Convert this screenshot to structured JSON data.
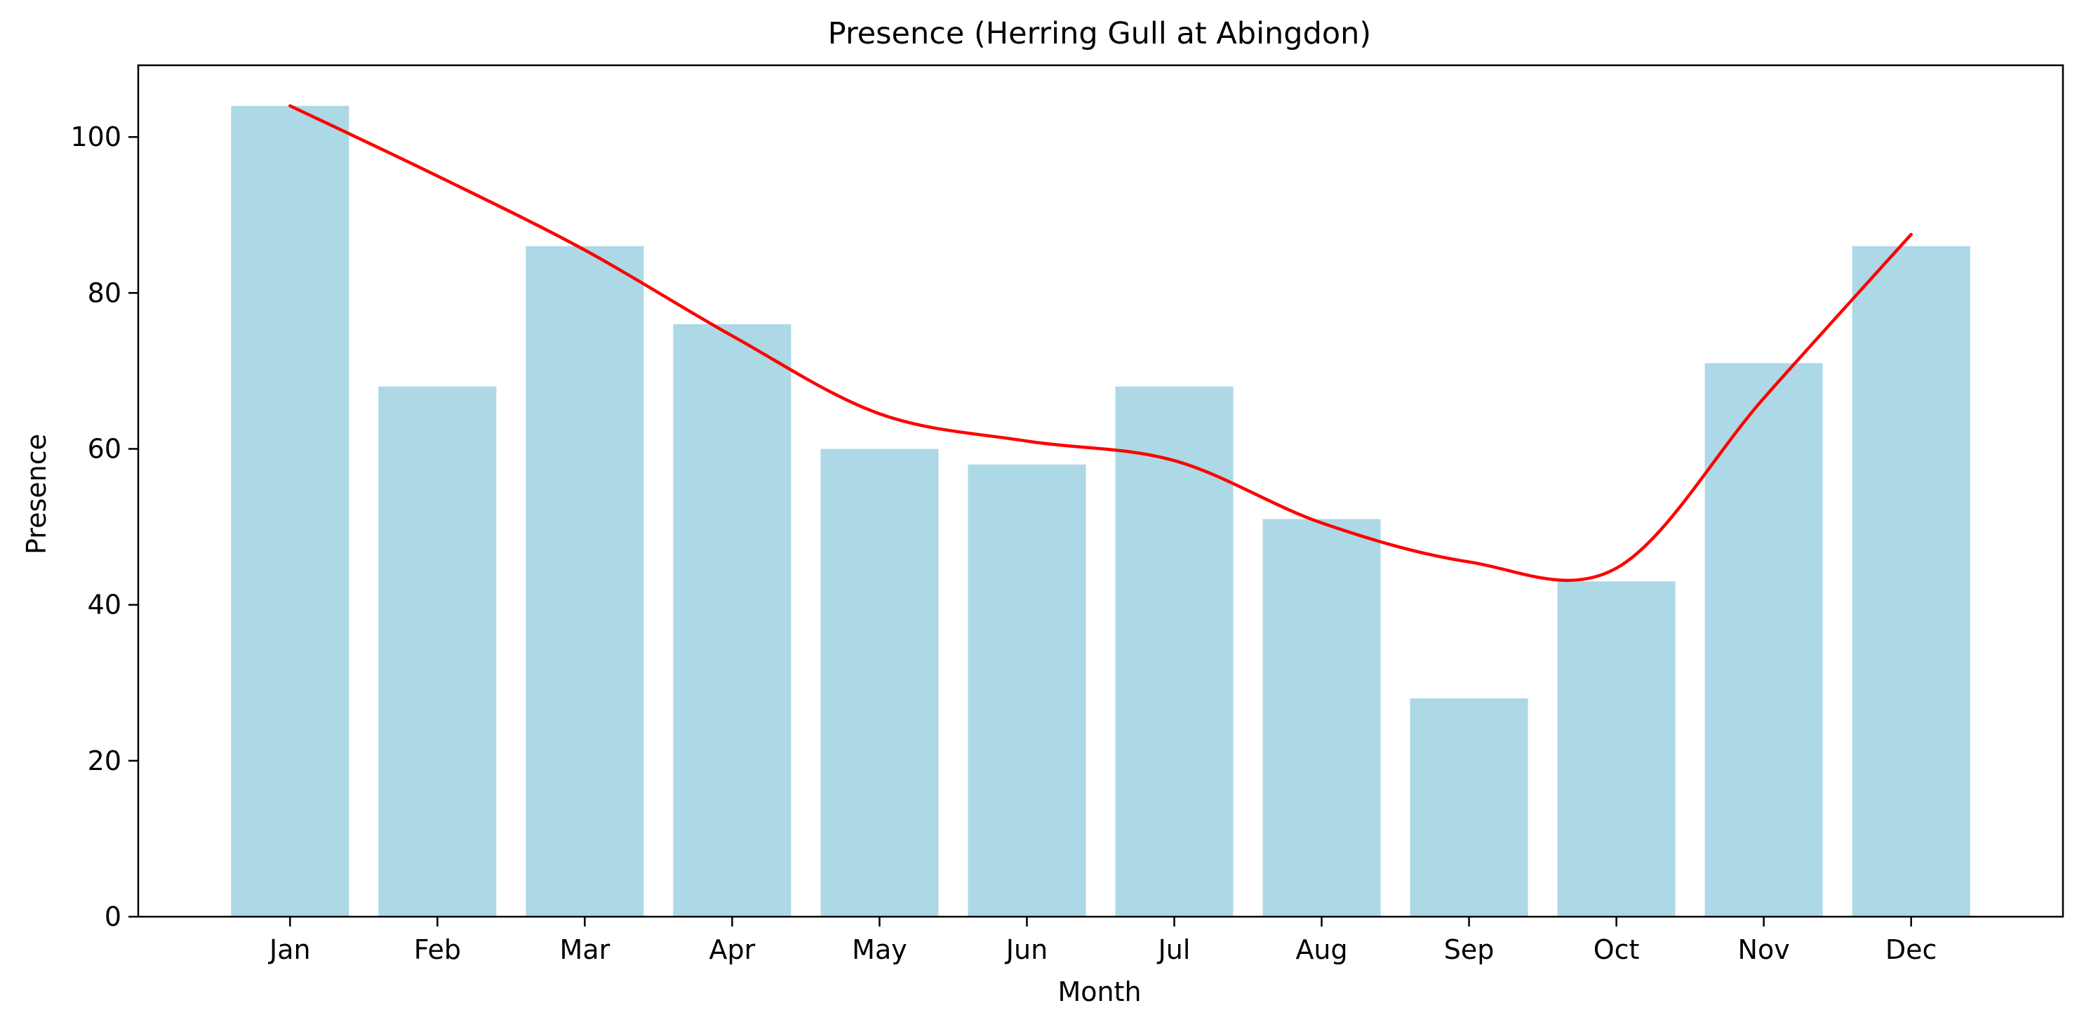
{
  "chart_data": {
    "type": "bar",
    "title": "Presence (Herring Gull at Abingdon)",
    "xlabel": "Month",
    "ylabel": "Presence",
    "categories": [
      "Jan",
      "Feb",
      "Mar",
      "Apr",
      "May",
      "Jun",
      "Jul",
      "Aug",
      "Sep",
      "Oct",
      "Nov",
      "Dec"
    ],
    "values": [
      104,
      68,
      86,
      76,
      60,
      58,
      68,
      51,
      28,
      43,
      71,
      86
    ],
    "trend": [
      104,
      95,
      85.5,
      74.5,
      64.5,
      61,
      58.5,
      50.5,
      45.5,
      44.7,
      66.5,
      87.5
    ],
    "ylim": [
      0,
      109.2
    ],
    "yticks": [
      0,
      20,
      40,
      60,
      80,
      100
    ],
    "grid": false,
    "bar_color": "#add8e6",
    "trend_color": "#ff0000"
  }
}
